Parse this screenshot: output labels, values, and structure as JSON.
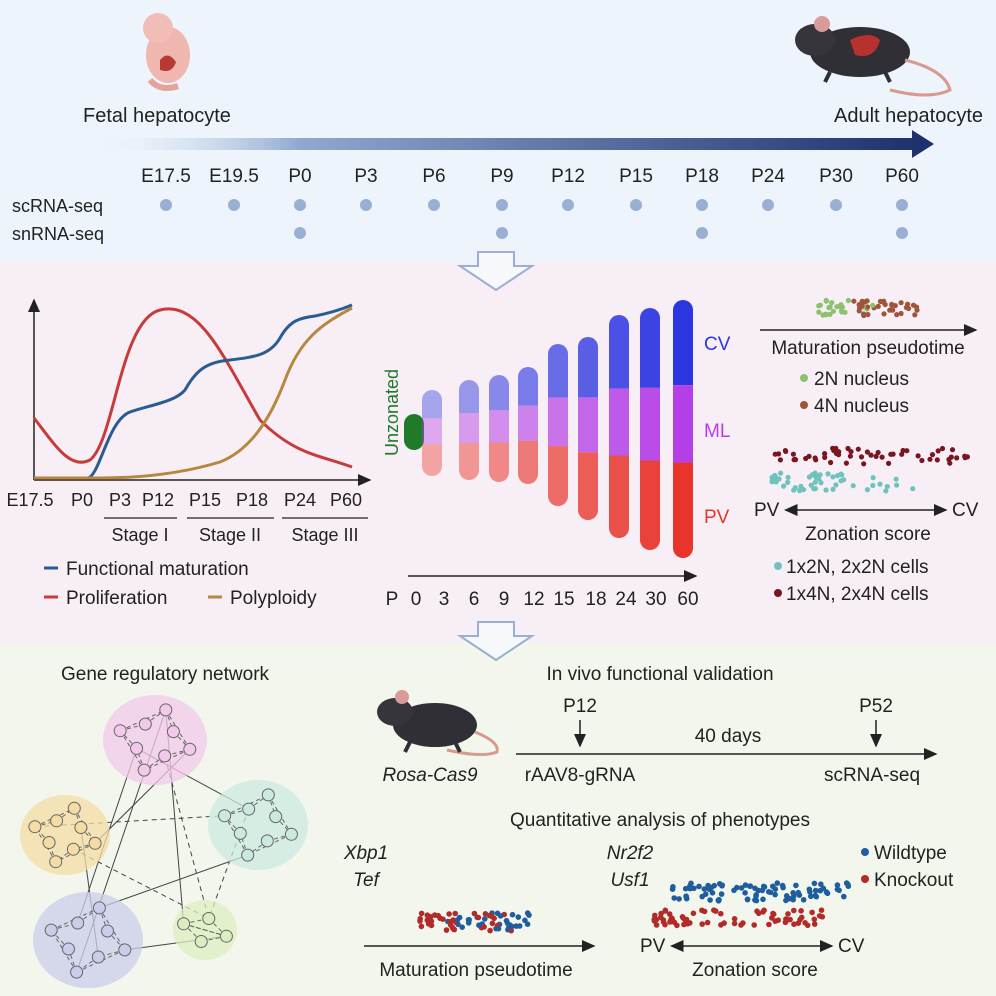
{
  "timeline": {
    "start_label": "Fetal hepatocyte",
    "end_label": "Adult hepatocyte",
    "timepoints": [
      "E17.5",
      "E19.5",
      "P0",
      "P3",
      "P6",
      "P9",
      "P12",
      "P15",
      "P18",
      "P24",
      "P30",
      "P60"
    ],
    "rows": [
      {
        "label": "scRNA-seq",
        "present": [
          1,
          1,
          1,
          1,
          1,
          1,
          1,
          1,
          1,
          1,
          1,
          1
        ]
      },
      {
        "label": "snRNA-seq",
        "present": [
          0,
          0,
          1,
          0,
          0,
          1,
          0,
          0,
          1,
          0,
          0,
          1
        ]
      }
    ],
    "colors": {
      "dot": "#9ab0d3",
      "arrow_dark": "#1a2f6b",
      "bg": "#edf4fb"
    }
  },
  "curves": {
    "x_ticks": [
      "E17.5",
      "P0",
      "P3",
      "P12",
      "P15",
      "P18",
      "P24",
      "P60"
    ],
    "stages": [
      "Stage I",
      "Stage II",
      "Stage III"
    ],
    "legend": [
      {
        "name": "Functional maturation",
        "color": "#2a5c93"
      },
      {
        "name": "Proliferation",
        "color": "#c73b3b"
      },
      {
        "name": "Polyploidy",
        "color": "#b5873f"
      }
    ]
  },
  "zonation": {
    "unzonated_label": "Unzonated",
    "zone_labels": [
      "CV",
      "ML",
      "PV"
    ],
    "zone_colors": {
      "CV": "#2b35e0",
      "ML": "#b43fe6",
      "PV": "#e8342b"
    },
    "axis_prefix": "P",
    "x_ticks": [
      "0",
      "3",
      "6",
      "9",
      "12",
      "15",
      "18",
      "24",
      "30",
      "60"
    ]
  },
  "right_panel": {
    "pseudotime_label": "Maturation pseudotime",
    "nucleus_legend": [
      {
        "label": "2N nucleus",
        "color": "#8cc16e"
      },
      {
        "label": "4N nucleus",
        "color": "#a0553a"
      }
    ],
    "pv_label": "PV",
    "cv_label": "CV",
    "zonation_score_label": "Zonation score",
    "cell_legend": [
      {
        "label": "1x2N, 2x2N cells",
        "color": "#6fc3bd"
      },
      {
        "label": "1x4N, 2x4N cells",
        "color": "#7a1620"
      }
    ]
  },
  "grn": {
    "title": "Gene regulatory network",
    "cluster_colors": [
      "#f2c9ea",
      "#f4dca4",
      "#cbeadf",
      "#c9cde9",
      "#dcedc2"
    ]
  },
  "validation": {
    "title": "In vivo functional validation",
    "mouse_label": "Rosa-Cas9",
    "p12": "P12",
    "p52": "P52",
    "duration": "40 days",
    "left_bottom": "rAAV8-gRNA",
    "right_bottom": "scRNA-seq"
  },
  "phenotypes": {
    "title": "Quantitative analysis of phenotypes",
    "genes_left": [
      "Xbp1",
      "Tef"
    ],
    "genes_right": [
      "Nr2f2",
      "Usf1"
    ],
    "legend": [
      {
        "label": "Wildtype",
        "color": "#1f5e9e"
      },
      {
        "label": "Knockout",
        "color": "#b32a2a"
      }
    ],
    "pseudotime_label": "Maturation pseudotime",
    "pv_label": "PV",
    "cv_label": "CV",
    "zonation_score_label": "Zonation score"
  }
}
